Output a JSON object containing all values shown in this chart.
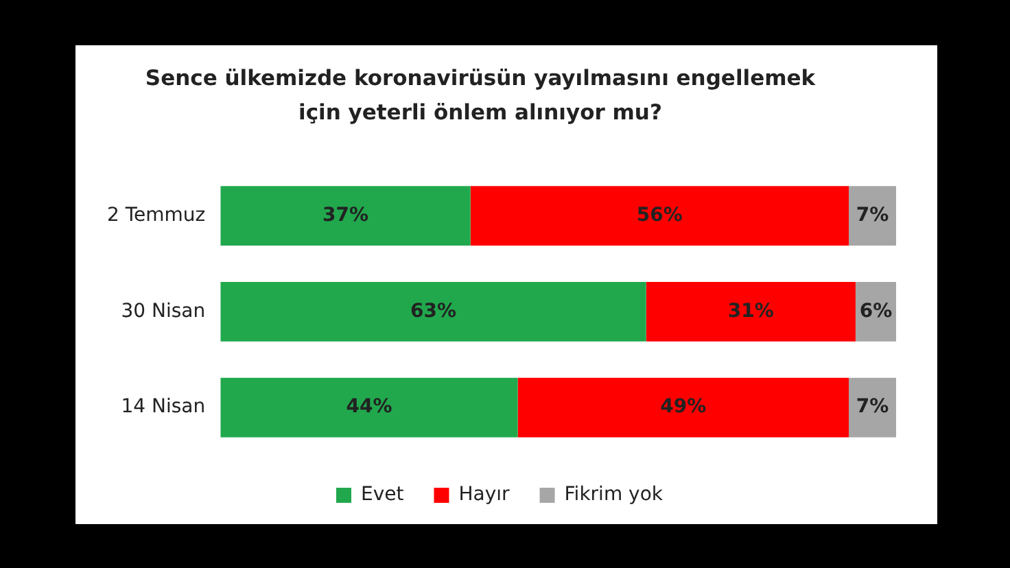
{
  "chart_data": {
    "type": "bar",
    "orientation": "horizontal",
    "stacked": true,
    "title": "Sence ülkemizde koronavirüsün yayılmasını engellemek için yeterli önlem alınıyor mu?",
    "categories": [
      "2 Temmuz",
      "30 Nisan",
      "14 Nisan"
    ],
    "series": [
      {
        "name": "Evet",
        "color": "#21a84d",
        "values": [
          37,
          63,
          44
        ],
        "value_labels": [
          "37%",
          "63%",
          "44%"
        ]
      },
      {
        "name": "Hayır",
        "color": "#fe0000",
        "values": [
          56,
          31,
          49
        ],
        "value_labels": [
          "56%",
          "31%",
          "49%"
        ]
      },
      {
        "name": "Fikrim yok",
        "color": "#a6a6a6",
        "values": [
          7,
          6,
          7
        ],
        "value_labels": [
          "7%",
          "6%",
          "7%"
        ]
      }
    ],
    "xlim": [
      0,
      100
    ],
    "tick_labels": "y",
    "legend": "bottom"
  }
}
